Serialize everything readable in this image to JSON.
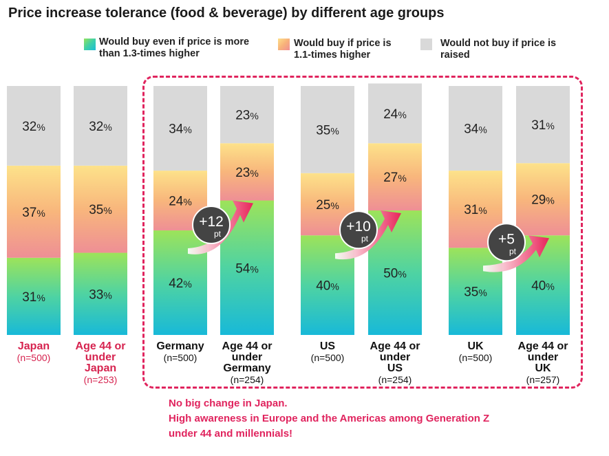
{
  "title": "Price increase tolerance (food & beverage) by different age groups",
  "legend": [
    {
      "line1": "Would buy even if price is more",
      "line2": "than 1.3-times higher"
    },
    {
      "line1": "Would buy if price is",
      "line2": "1.1-times higher"
    },
    {
      "line1": "Would not buy if price is",
      "line2": "raised"
    }
  ],
  "chart_data": {
    "type": "bar",
    "stacked": true,
    "categories": [
      "Japan",
      "Age 44 or under Japan",
      "Germany",
      "Age 44 or under Germany",
      "US",
      "Age 44 or under US",
      "UK",
      "Age 44 or under UK"
    ],
    "series": [
      {
        "name": "Would buy even if price is more than 1.3-times higher",
        "values": [
          31,
          33,
          42,
          54,
          40,
          50,
          35,
          40
        ]
      },
      {
        "name": "Would buy if price is 1.1-times higher",
        "values": [
          37,
          35,
          24,
          23,
          25,
          27,
          31,
          29
        ]
      },
      {
        "name": "Would not buy if price is raised",
        "values": [
          32,
          32,
          34,
          23,
          35,
          24,
          34,
          31
        ]
      }
    ],
    "bars": [
      {
        "name_lines": [
          "Japan"
        ],
        "n": "(n=500)",
        "highlight": true
      },
      {
        "name_lines": [
          "Age 44 or",
          "under",
          "Japan"
        ],
        "n": "(n=253)",
        "highlight": true
      },
      {
        "name_lines": [
          "Germany"
        ],
        "n": "(n=500)",
        "highlight": false
      },
      {
        "name_lines": [
          "Age 44 or",
          "under",
          "Germany"
        ],
        "n": "(n=254)",
        "highlight": false
      },
      {
        "name_lines": [
          "US"
        ],
        "n": "(n=500)",
        "highlight": false
      },
      {
        "name_lines": [
          "Age 44 or",
          "under",
          "US"
        ],
        "n": "(n=254)",
        "highlight": false
      },
      {
        "name_lines": [
          "UK"
        ],
        "n": "(n=500)",
        "highlight": false
      },
      {
        "name_lines": [
          "Age 44 or",
          "under",
          "UK"
        ],
        "n": "(n=257)",
        "highlight": false
      }
    ],
    "annotations": [
      {
        "value": "+12",
        "unit": "pt",
        "from_bar": 2
      },
      {
        "value": "+10",
        "unit": "pt",
        "from_bar": 4
      },
      {
        "value": "+5",
        "unit": "pt",
        "from_bar": 6
      }
    ],
    "ylim": [
      0,
      100
    ]
  },
  "footnote": [
    "No big change in Japan.",
    "High awareness in Europe and the Americas among Generation Z",
    "under 44 and millennials!"
  ],
  "colors": {
    "accent": "#e0245e",
    "label_highlight": "#d6234f",
    "not_buy": "#d9d9d9",
    "badge": "#444444"
  }
}
